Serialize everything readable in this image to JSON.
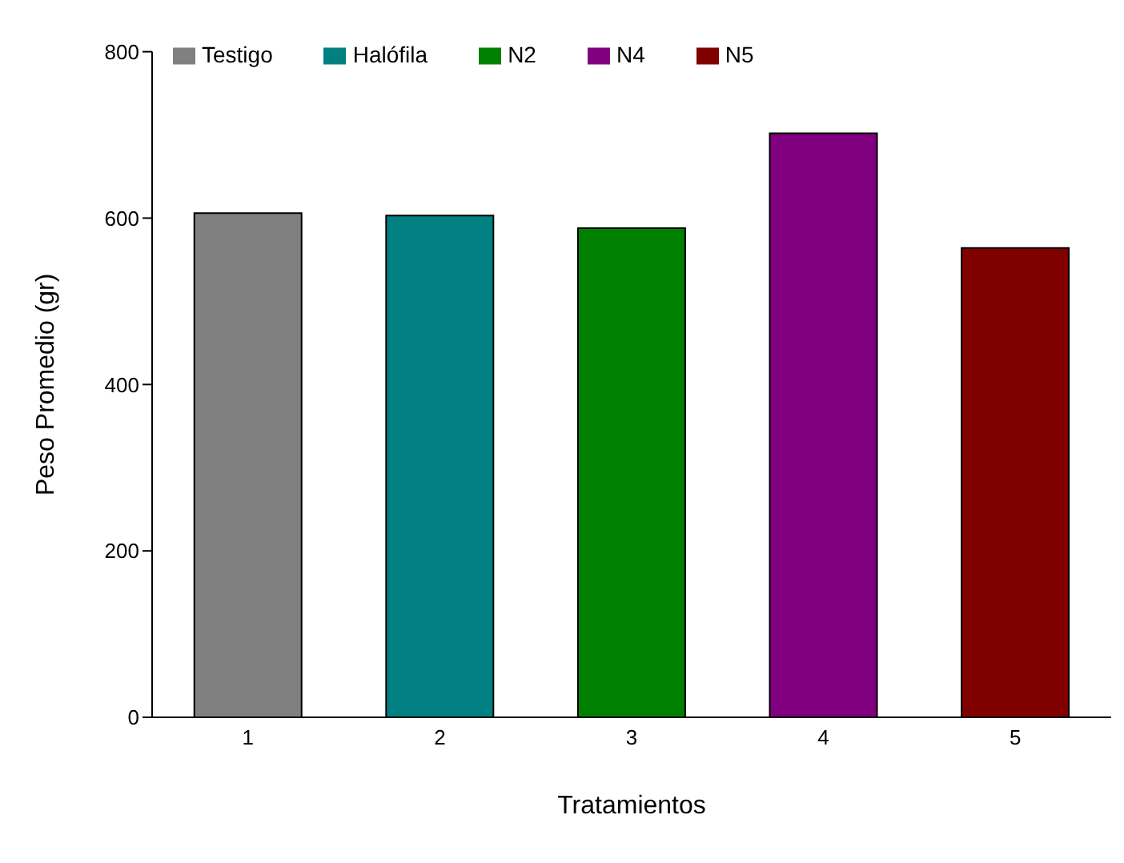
{
  "chart_data": {
    "type": "bar",
    "xlabel": "Tratamientos",
    "ylabel": "Peso Promedio (gr)",
    "categories": [
      "1",
      "2",
      "3",
      "4",
      "5"
    ],
    "series": [
      {
        "name": "Testigo",
        "color": "#808080",
        "values": [
          606,
          null,
          null,
          null,
          null
        ]
      },
      {
        "name": "Halófila",
        "color": "#008080",
        "values": [
          null,
          603,
          null,
          null,
          null
        ]
      },
      {
        "name": "N2",
        "color": "#008000",
        "values": [
          null,
          null,
          588,
          null,
          null
        ]
      },
      {
        "name": "N4",
        "color": "#800080",
        "values": [
          null,
          null,
          null,
          702,
          null
        ]
      },
      {
        "name": "N5",
        "color": "#800000",
        "values": [
          null,
          null,
          null,
          null,
          564
        ]
      }
    ],
    "ylim": [
      0,
      800
    ],
    "yticks": [
      0,
      200,
      400,
      600,
      800
    ],
    "grid": false,
    "legend": "top left"
  }
}
